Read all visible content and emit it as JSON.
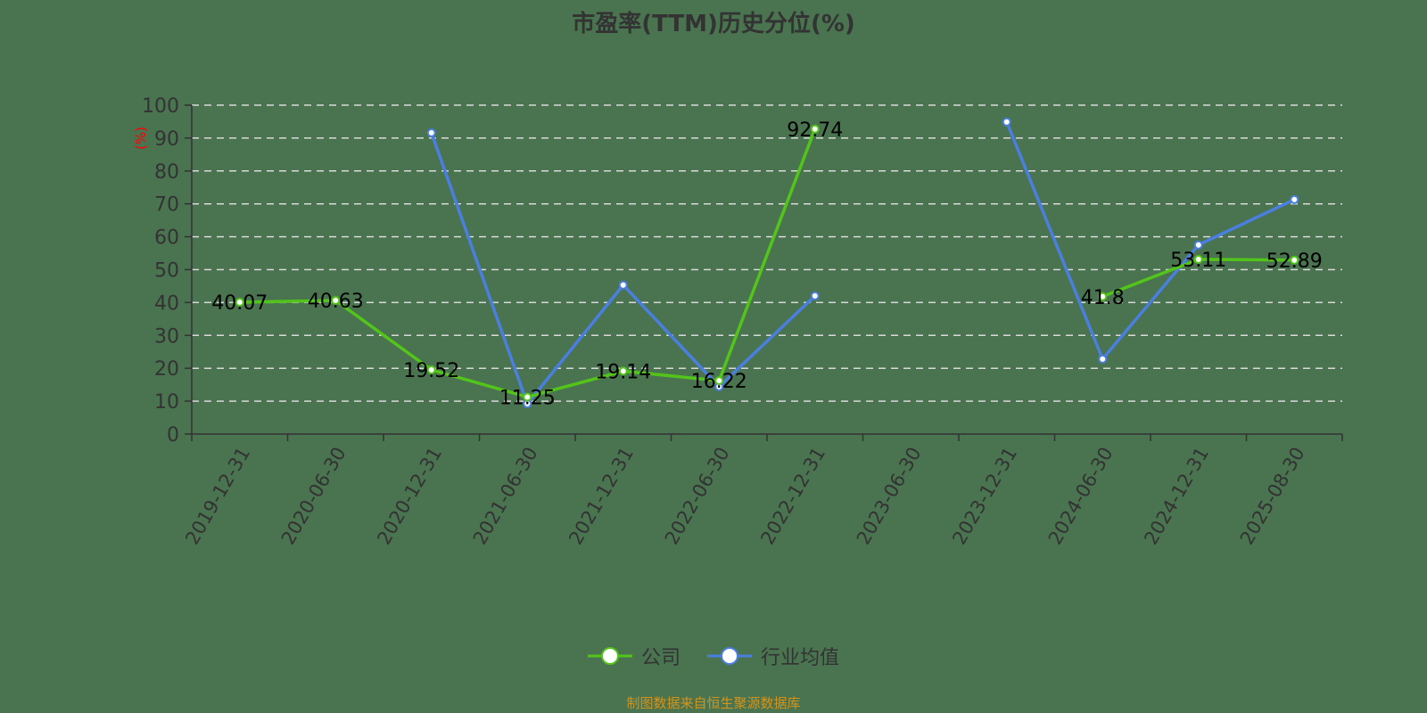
{
  "chart_data": {
    "type": "line",
    "title": "市盈率(TTM)历史分位(%)",
    "xlabel": "",
    "ylabel": "(%)",
    "ylim": [
      0,
      100
    ],
    "yticks": [
      0,
      10,
      20,
      30,
      40,
      50,
      60,
      70,
      80,
      90,
      100
    ],
    "grid": true,
    "legend_position": "bottom",
    "categories": [
      "2019-12-31",
      "2020-06-30",
      "2020-12-31",
      "2021-06-30",
      "2021-12-31",
      "2022-06-30",
      "2022-12-31",
      "2023-06-30",
      "2023-12-31",
      "2024-06-30",
      "2024-12-31",
      "2025-08-30"
    ],
    "series": [
      {
        "name": "公司",
        "color": "#52c41a",
        "show_labels": true,
        "values": [
          40.07,
          40.63,
          19.52,
          11.25,
          19.14,
          16.22,
          92.74,
          null,
          null,
          41.8,
          53.11,
          52.89
        ]
      },
      {
        "name": "行业均值",
        "color": "#4a7fe0",
        "show_labels": false,
        "values": [
          null,
          null,
          91.6,
          9.2,
          45.3,
          14.4,
          42.0,
          null,
          94.9,
          22.8,
          57.5,
          71.3
        ]
      }
    ]
  },
  "source_note": "制图数据来自恒生聚源数据库"
}
